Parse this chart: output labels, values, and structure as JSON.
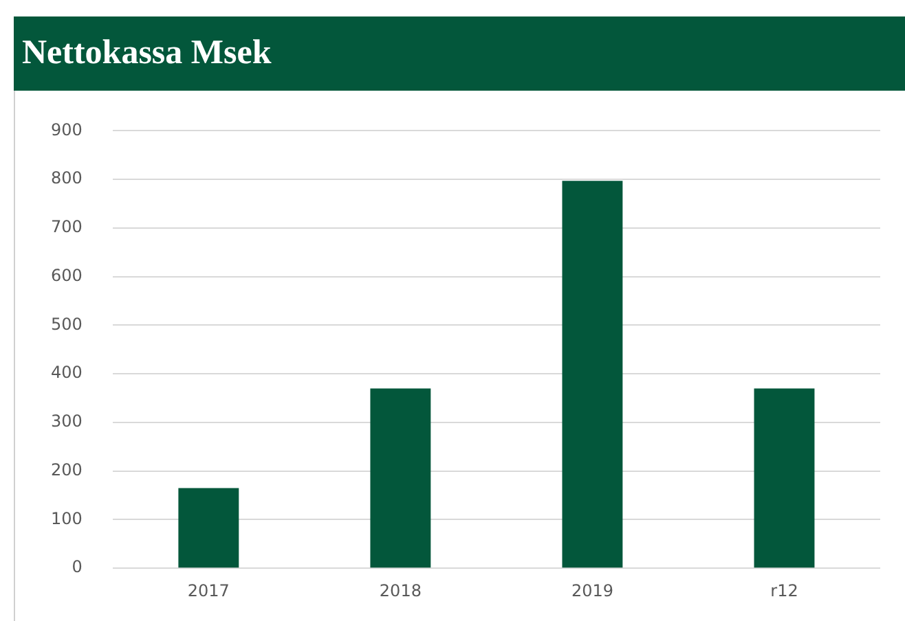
{
  "chart_data": {
    "type": "bar",
    "title": "Nettokassa Msek",
    "categories": [
      "2017",
      "2018",
      "2019",
      "r12"
    ],
    "values": [
      165,
      370,
      797,
      370
    ],
    "color": "#03573b",
    "ylim": [
      0,
      900
    ],
    "yticks": [
      0,
      100,
      200,
      300,
      400,
      500,
      600,
      700,
      800,
      900
    ],
    "grid": "y",
    "legend": false
  }
}
